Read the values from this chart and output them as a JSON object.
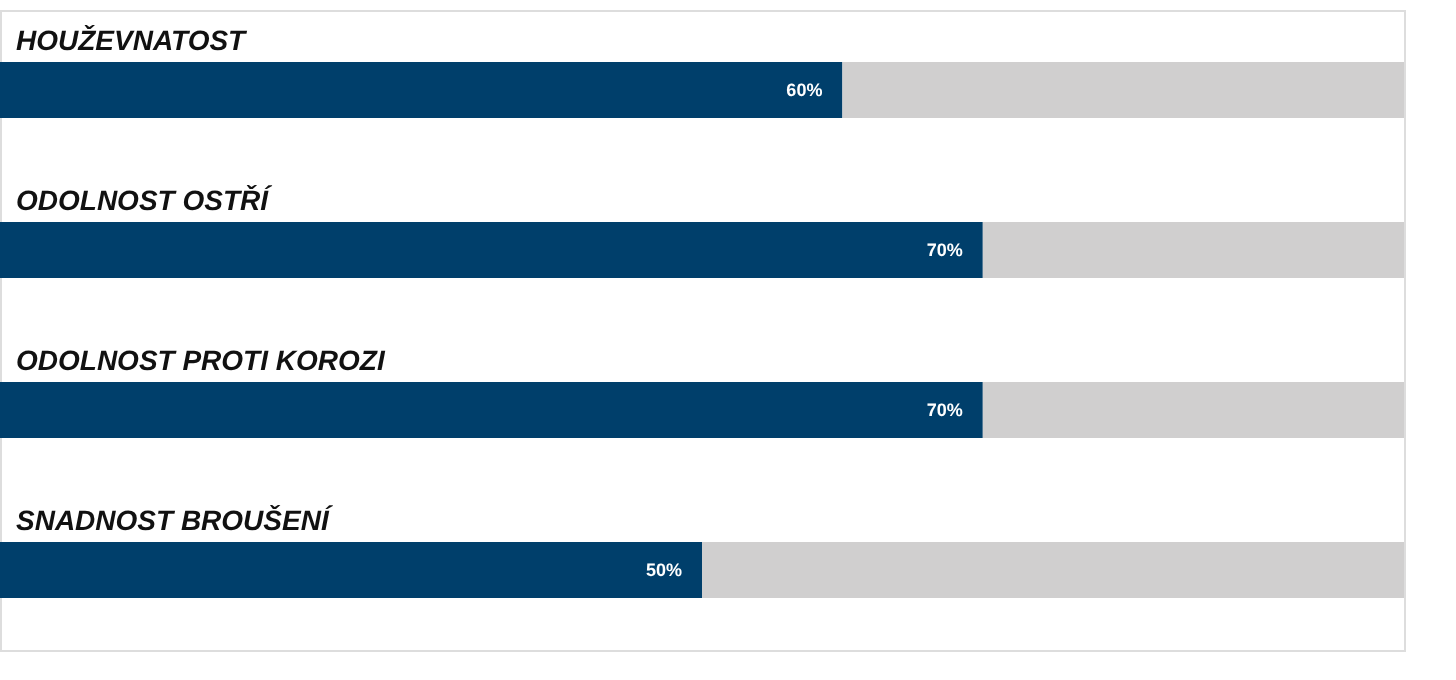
{
  "chart_data": {
    "type": "bar",
    "orientation": "horizontal",
    "stacked": true,
    "categories": [
      "HOUŽEVNATOST",
      "ODOLNOST OSTŘÍ",
      "ODOLNOST PROTI KOROZI",
      "SNADNOST BROUŠENÍ"
    ],
    "series": [
      {
        "color": "#003f6b",
        "values": [
          60,
          70,
          70,
          50
        ],
        "value_labels": [
          "60%",
          "70%",
          "70%",
          "50%"
        ]
      },
      {
        "color": "#d0cfcf",
        "values": [
          40,
          30,
          30,
          50
        ]
      }
    ],
    "xlim": [
      0,
      100
    ],
    "tick_labels": false,
    "grid": false
  }
}
